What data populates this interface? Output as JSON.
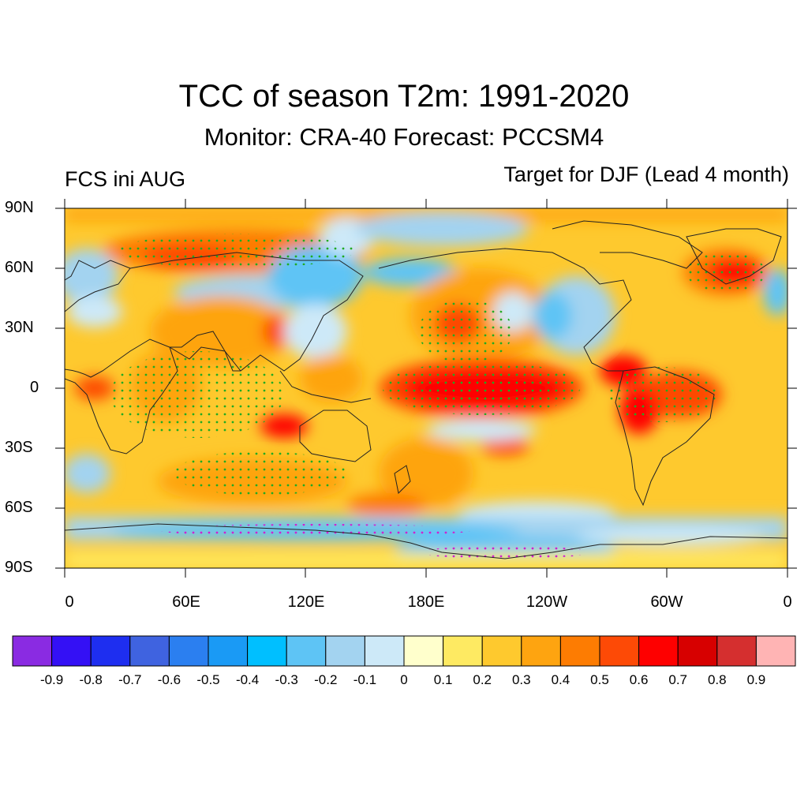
{
  "title": "TCC of season T2m: 1991-2020",
  "subtitle": "Monitor: CRA-40   Forecast: PCCSM4",
  "left_label": "FCS ini AUG",
  "right_label": "Target for DJF (Lead 4 month)",
  "y_ticks": [
    "90N",
    "60N",
    "30N",
    "0",
    "30S",
    "60S",
    "90S"
  ],
  "x_ticks": [
    "0",
    "60E",
    "120E",
    "180E",
    "120W",
    "60W",
    "0"
  ],
  "colorbar": {
    "colors": [
      "#8a2be2",
      "#3410f5",
      "#1e2ef0",
      "#3f63e0",
      "#2b7ff0",
      "#1a9af5",
      "#00bfff",
      "#5ec4f5",
      "#a3d3f0",
      "#cde9f8",
      "#ffffcc",
      "#feea62",
      "#fec92e",
      "#fea410",
      "#fd7c02",
      "#fd4a06",
      "#fe0000",
      "#d70000",
      "#d52f2f",
      "#ffb4b4"
    ],
    "labels": [
      "-0.9",
      "-0.8",
      "-0.7",
      "-0.6",
      "-0.5",
      "-0.4",
      "-0.3",
      "-0.2",
      "-0.1",
      "0",
      "0.1",
      "0.2",
      "0.3",
      "0.4",
      "0.5",
      "0.6",
      "0.7",
      "0.8",
      "0.9"
    ]
  },
  "colors": {
    "significance_dots": "#22aa22",
    "negative_dots": "#d020d0",
    "coastline": "#222222"
  }
}
